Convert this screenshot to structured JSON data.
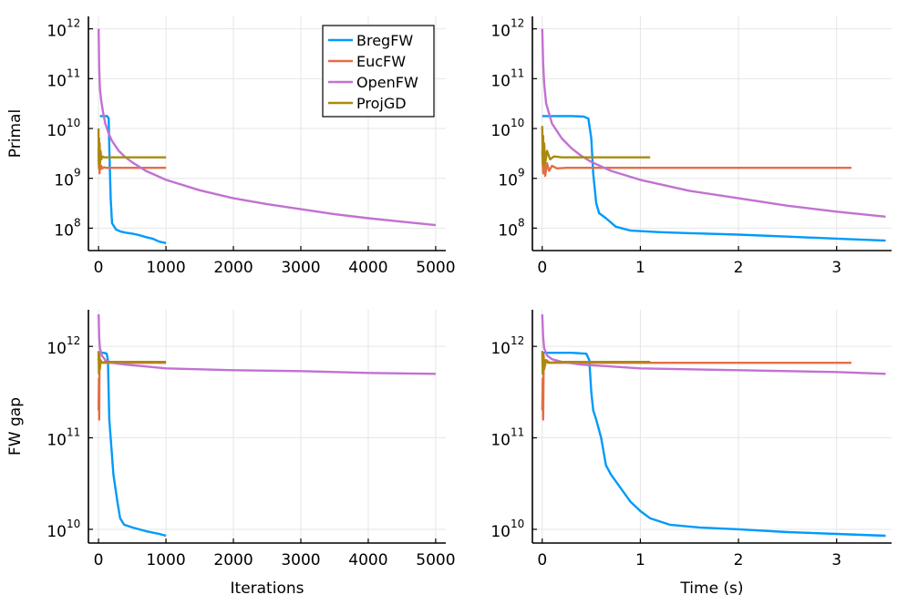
{
  "chart_data": [
    {
      "type": "line",
      "yscale": "log",
      "xlabel": "",
      "ylabel": "Primal",
      "xlim": [
        -150,
        5150
      ],
      "ylim_exp": [
        7.55,
        12.25
      ],
      "xticks": [
        0,
        1000,
        2000,
        3000,
        4000,
        5000
      ],
      "xtick_labels": [
        "0",
        "1000",
        "2000",
        "3000",
        "4000",
        "5000"
      ],
      "yticks_exp": [
        8,
        9,
        10,
        11,
        12
      ],
      "ytick_bases": [
        "10",
        "10",
        "10",
        "10",
        "10"
      ],
      "ytick_sups": [
        "8",
        "9",
        "10",
        "11",
        "12"
      ],
      "grid": true,
      "legend": "top-right",
      "series": [
        {
          "name": "BregFW",
          "color": "#009AFA",
          "points": [
            [
              20,
              10.25
            ],
            [
              80,
              10.25
            ],
            [
              130,
              10.25
            ],
            [
              150,
              10.2
            ],
            [
              160,
              9.6
            ],
            [
              180,
              8.6
            ],
            [
              200,
              8.1
            ],
            [
              260,
              7.97
            ],
            [
              330,
              7.93
            ],
            [
              400,
              7.91
            ],
            [
              500,
              7.89
            ],
            [
              600,
              7.86
            ],
            [
              700,
              7.82
            ],
            [
              800,
              7.79
            ],
            [
              900,
              7.73
            ],
            [
              1000,
              7.7
            ]
          ]
        },
        {
          "name": "EucFW",
          "color": "#E26F46",
          "points": [
            [
              0,
              9.6
            ],
            [
              5,
              9.2
            ],
            [
              10,
              9.4
            ],
            [
              15,
              9.1
            ],
            [
              22,
              9.28
            ],
            [
              30,
              9.18
            ],
            [
              40,
              9.25
            ],
            [
              55,
              9.2
            ],
            [
              80,
              9.22
            ],
            [
              120,
              9.21
            ],
            [
              200,
              9.21
            ],
            [
              500,
              9.21
            ],
            [
              1000,
              9.21
            ]
          ]
        },
        {
          "name": "OpenFW",
          "color": "#C271D2",
          "points": [
            [
              1,
              12
            ],
            [
              10,
              11.2
            ],
            [
              20,
              10.8
            ],
            [
              40,
              10.55
            ],
            [
              70,
              10.3
            ],
            [
              100,
              10.1
            ],
            [
              150,
              9.9
            ],
            [
              200,
              9.75
            ],
            [
              300,
              9.55
            ],
            [
              400,
              9.42
            ],
            [
              500,
              9.32
            ],
            [
              700,
              9.15
            ],
            [
              1000,
              8.97
            ],
            [
              1500,
              8.76
            ],
            [
              2000,
              8.6
            ],
            [
              2500,
              8.48
            ],
            [
              3000,
              8.38
            ],
            [
              3500,
              8.28
            ],
            [
              4000,
              8.2
            ],
            [
              4500,
              8.13
            ],
            [
              5000,
              8.06
            ]
          ]
        },
        {
          "name": "ProjGD",
          "color": "#AA8A0E",
          "points": [
            [
              0,
              10.0
            ],
            [
              4,
              9.3
            ],
            [
              8,
              9.8
            ],
            [
              12,
              9.2
            ],
            [
              16,
              9.7
            ],
            [
              22,
              9.3
            ],
            [
              30,
              9.55
            ],
            [
              40,
              9.38
            ],
            [
              55,
              9.44
            ],
            [
              80,
              9.42
            ],
            [
              120,
              9.42
            ],
            [
              300,
              9.42
            ],
            [
              1000,
              9.42
            ]
          ]
        }
      ]
    },
    {
      "type": "line",
      "yscale": "log",
      "xlabel": "",
      "ylabel": "",
      "xlim": [
        -0.1,
        3.56
      ],
      "ylim_exp": [
        7.55,
        12.25
      ],
      "xticks": [
        0,
        1,
        2,
        3
      ],
      "xtick_labels": [
        "0",
        "1",
        "2",
        "3"
      ],
      "yticks_exp": [
        8,
        9,
        10,
        11,
        12
      ],
      "ytick_bases": [
        "10",
        "10",
        "10",
        "10",
        "10"
      ],
      "ytick_sups": [
        "8",
        "9",
        "10",
        "11",
        "12"
      ],
      "grid": true,
      "legend": "none",
      "series": [
        {
          "name": "BregFW",
          "color": "#009AFA",
          "points": [
            [
              0,
              10.25
            ],
            [
              0.3,
              10.25
            ],
            [
              0.42,
              10.24
            ],
            [
              0.47,
              10.2
            ],
            [
              0.5,
              9.8
            ],
            [
              0.52,
              9.1
            ],
            [
              0.55,
              8.5
            ],
            [
              0.58,
              8.3
            ],
            [
              0.65,
              8.2
            ],
            [
              0.75,
              8.03
            ],
            [
              0.9,
              7.95
            ],
            [
              1.2,
              7.92
            ],
            [
              1.5,
              7.9
            ],
            [
              2.0,
              7.87
            ],
            [
              2.5,
              7.83
            ],
            [
              3.0,
              7.79
            ],
            [
              3.5,
              7.75
            ]
          ]
        },
        {
          "name": "EucFW",
          "color": "#E26F46",
          "points": [
            [
              0,
              9.55
            ],
            [
              0.01,
              9.1
            ],
            [
              0.02,
              9.4
            ],
            [
              0.03,
              9.05
            ],
            [
              0.05,
              9.3
            ],
            [
              0.07,
              9.15
            ],
            [
              0.1,
              9.25
            ],
            [
              0.15,
              9.2
            ],
            [
              0.25,
              9.21
            ],
            [
              1.0,
              9.21
            ],
            [
              2.0,
              9.21
            ],
            [
              3.15,
              9.21
            ]
          ]
        },
        {
          "name": "OpenFW",
          "color": "#C271D2",
          "points": [
            [
              0,
              12
            ],
            [
              0.01,
              11.3
            ],
            [
              0.02,
              10.9
            ],
            [
              0.04,
              10.5
            ],
            [
              0.07,
              10.3
            ],
            [
              0.1,
              10.1
            ],
            [
              0.15,
              9.95
            ],
            [
              0.2,
              9.8
            ],
            [
              0.3,
              9.6
            ],
            [
              0.4,
              9.45
            ],
            [
              0.5,
              9.33
            ],
            [
              0.7,
              9.15
            ],
            [
              1.0,
              8.97
            ],
            [
              1.5,
              8.75
            ],
            [
              2.0,
              8.6
            ],
            [
              2.5,
              8.45
            ],
            [
              3.0,
              8.33
            ],
            [
              3.5,
              8.23
            ]
          ]
        },
        {
          "name": "ProjGD",
          "color": "#AA8A0E",
          "points": [
            [
              0,
              10.05
            ],
            [
              0.005,
              9.3
            ],
            [
              0.01,
              9.85
            ],
            [
              0.015,
              9.25
            ],
            [
              0.02,
              9.7
            ],
            [
              0.03,
              9.3
            ],
            [
              0.05,
              9.55
            ],
            [
              0.08,
              9.38
            ],
            [
              0.12,
              9.44
            ],
            [
              0.2,
              9.42
            ],
            [
              0.5,
              9.42
            ],
            [
              1.1,
              9.42
            ]
          ]
        }
      ]
    },
    {
      "type": "line",
      "yscale": "log",
      "xlabel": "Iterations",
      "ylabel": "FW gap",
      "xlim": [
        -150,
        5150
      ],
      "ylim_exp": [
        9.85,
        12.4
      ],
      "xticks": [
        0,
        1000,
        2000,
        3000,
        4000,
        5000
      ],
      "xtick_labels": [
        "0",
        "1000",
        "2000",
        "3000",
        "4000",
        "5000"
      ],
      "yticks_exp": [
        10,
        11,
        12
      ],
      "ytick_bases": [
        "10",
        "10",
        "10"
      ],
      "ytick_sups": [
        "10",
        "11",
        "12"
      ],
      "grid": true,
      "legend": "none",
      "series": [
        {
          "name": "BregFW",
          "color": "#009AFA",
          "points": [
            [
              20,
              11.93
            ],
            [
              80,
              11.93
            ],
            [
              120,
              11.92
            ],
            [
              140,
              11.85
            ],
            [
              150,
              11.5
            ],
            [
              160,
              11.2
            ],
            [
              180,
              11.0
            ],
            [
              200,
              10.8
            ],
            [
              220,
              10.6
            ],
            [
              250,
              10.45
            ],
            [
              280,
              10.3
            ],
            [
              320,
              10.12
            ],
            [
              380,
              10.05
            ],
            [
              500,
              10.02
            ],
            [
              700,
              9.98
            ],
            [
              900,
              9.95
            ],
            [
              1000,
              9.93
            ]
          ]
        },
        {
          "name": "EucFW",
          "color": "#E26F46",
          "points": [
            [
              0,
              11.3
            ],
            [
              5,
              11.65
            ],
            [
              10,
              11.2
            ],
            [
              15,
              11.9
            ],
            [
              20,
              11.75
            ],
            [
              30,
              11.85
            ],
            [
              50,
              11.82
            ],
            [
              100,
              11.82
            ],
            [
              500,
              11.82
            ],
            [
              1000,
              11.82
            ]
          ]
        },
        {
          "name": "OpenFW",
          "color": "#C271D2",
          "points": [
            [
              1,
              12.35
            ],
            [
              10,
              12.1
            ],
            [
              20,
              11.98
            ],
            [
              50,
              11.9
            ],
            [
              100,
              11.85
            ],
            [
              200,
              11.82
            ],
            [
              400,
              11.8
            ],
            [
              700,
              11.78
            ],
            [
              1000,
              11.76
            ],
            [
              1500,
              11.75
            ],
            [
              2000,
              11.74
            ],
            [
              3000,
              11.73
            ],
            [
              4000,
              11.71
            ],
            [
              5000,
              11.7
            ]
          ]
        },
        {
          "name": "ProjGD",
          "color": "#AA8A0E",
          "points": [
            [
              0,
              11.95
            ],
            [
              5,
              11.7
            ],
            [
              10,
              11.92
            ],
            [
              15,
              11.75
            ],
            [
              25,
              11.85
            ],
            [
              40,
              11.82
            ],
            [
              100,
              11.83
            ],
            [
              500,
              11.83
            ],
            [
              1000,
              11.83
            ]
          ]
        }
      ]
    },
    {
      "type": "line",
      "yscale": "log",
      "xlabel": "Time (s)",
      "ylabel": "",
      "xlim": [
        -0.1,
        3.56
      ],
      "ylim_exp": [
        9.85,
        12.4
      ],
      "xticks": [
        0,
        1,
        2,
        3
      ],
      "xtick_labels": [
        "0",
        "1",
        "2",
        "3"
      ],
      "yticks_exp": [
        10,
        11,
        12
      ],
      "ytick_bases": [
        "10",
        "10",
        "10"
      ],
      "ytick_sups": [
        "10",
        "11",
        "12"
      ],
      "grid": true,
      "legend": "none",
      "series": [
        {
          "name": "BregFW",
          "color": "#009AFA",
          "points": [
            [
              0,
              11.93
            ],
            [
              0.3,
              11.93
            ],
            [
              0.45,
              11.92
            ],
            [
              0.48,
              11.85
            ],
            [
              0.5,
              11.5
            ],
            [
              0.52,
              11.3
            ],
            [
              0.55,
              11.2
            ],
            [
              0.6,
              11.0
            ],
            [
              0.65,
              10.7
            ],
            [
              0.7,
              10.6
            ],
            [
              0.8,
              10.45
            ],
            [
              0.9,
              10.3
            ],
            [
              1.0,
              10.2
            ],
            [
              1.1,
              10.12
            ],
            [
              1.3,
              10.05
            ],
            [
              1.6,
              10.02
            ],
            [
              2.0,
              10.0
            ],
            [
              2.5,
              9.97
            ],
            [
              3.0,
              9.95
            ],
            [
              3.5,
              9.93
            ]
          ]
        },
        {
          "name": "EucFW",
          "color": "#E26F46",
          "points": [
            [
              0,
              11.3
            ],
            [
              0.005,
              11.65
            ],
            [
              0.01,
              11.2
            ],
            [
              0.015,
              11.9
            ],
            [
              0.02,
              11.75
            ],
            [
              0.04,
              11.85
            ],
            [
              0.08,
              11.82
            ],
            [
              0.2,
              11.82
            ],
            [
              1.0,
              11.82
            ],
            [
              2.0,
              11.82
            ],
            [
              3.15,
              11.82
            ]
          ]
        },
        {
          "name": "OpenFW",
          "color": "#C271D2",
          "points": [
            [
              0,
              12.35
            ],
            [
              0.01,
              12.1
            ],
            [
              0.02,
              11.98
            ],
            [
              0.05,
              11.9
            ],
            [
              0.1,
              11.86
            ],
            [
              0.2,
              11.83
            ],
            [
              0.4,
              11.8
            ],
            [
              0.7,
              11.78
            ],
            [
              1.0,
              11.76
            ],
            [
              1.5,
              11.75
            ],
            [
              2.0,
              11.74
            ],
            [
              2.5,
              11.73
            ],
            [
              3.0,
              11.72
            ],
            [
              3.5,
              11.7
            ]
          ]
        },
        {
          "name": "ProjGD",
          "color": "#AA8A0E",
          "points": [
            [
              0,
              11.95
            ],
            [
              0.005,
              11.7
            ],
            [
              0.01,
              11.92
            ],
            [
              0.015,
              11.75
            ],
            [
              0.03,
              11.85
            ],
            [
              0.06,
              11.82
            ],
            [
              0.2,
              11.83
            ],
            [
              0.6,
              11.83
            ],
            [
              1.1,
              11.83
            ]
          ]
        }
      ]
    }
  ]
}
